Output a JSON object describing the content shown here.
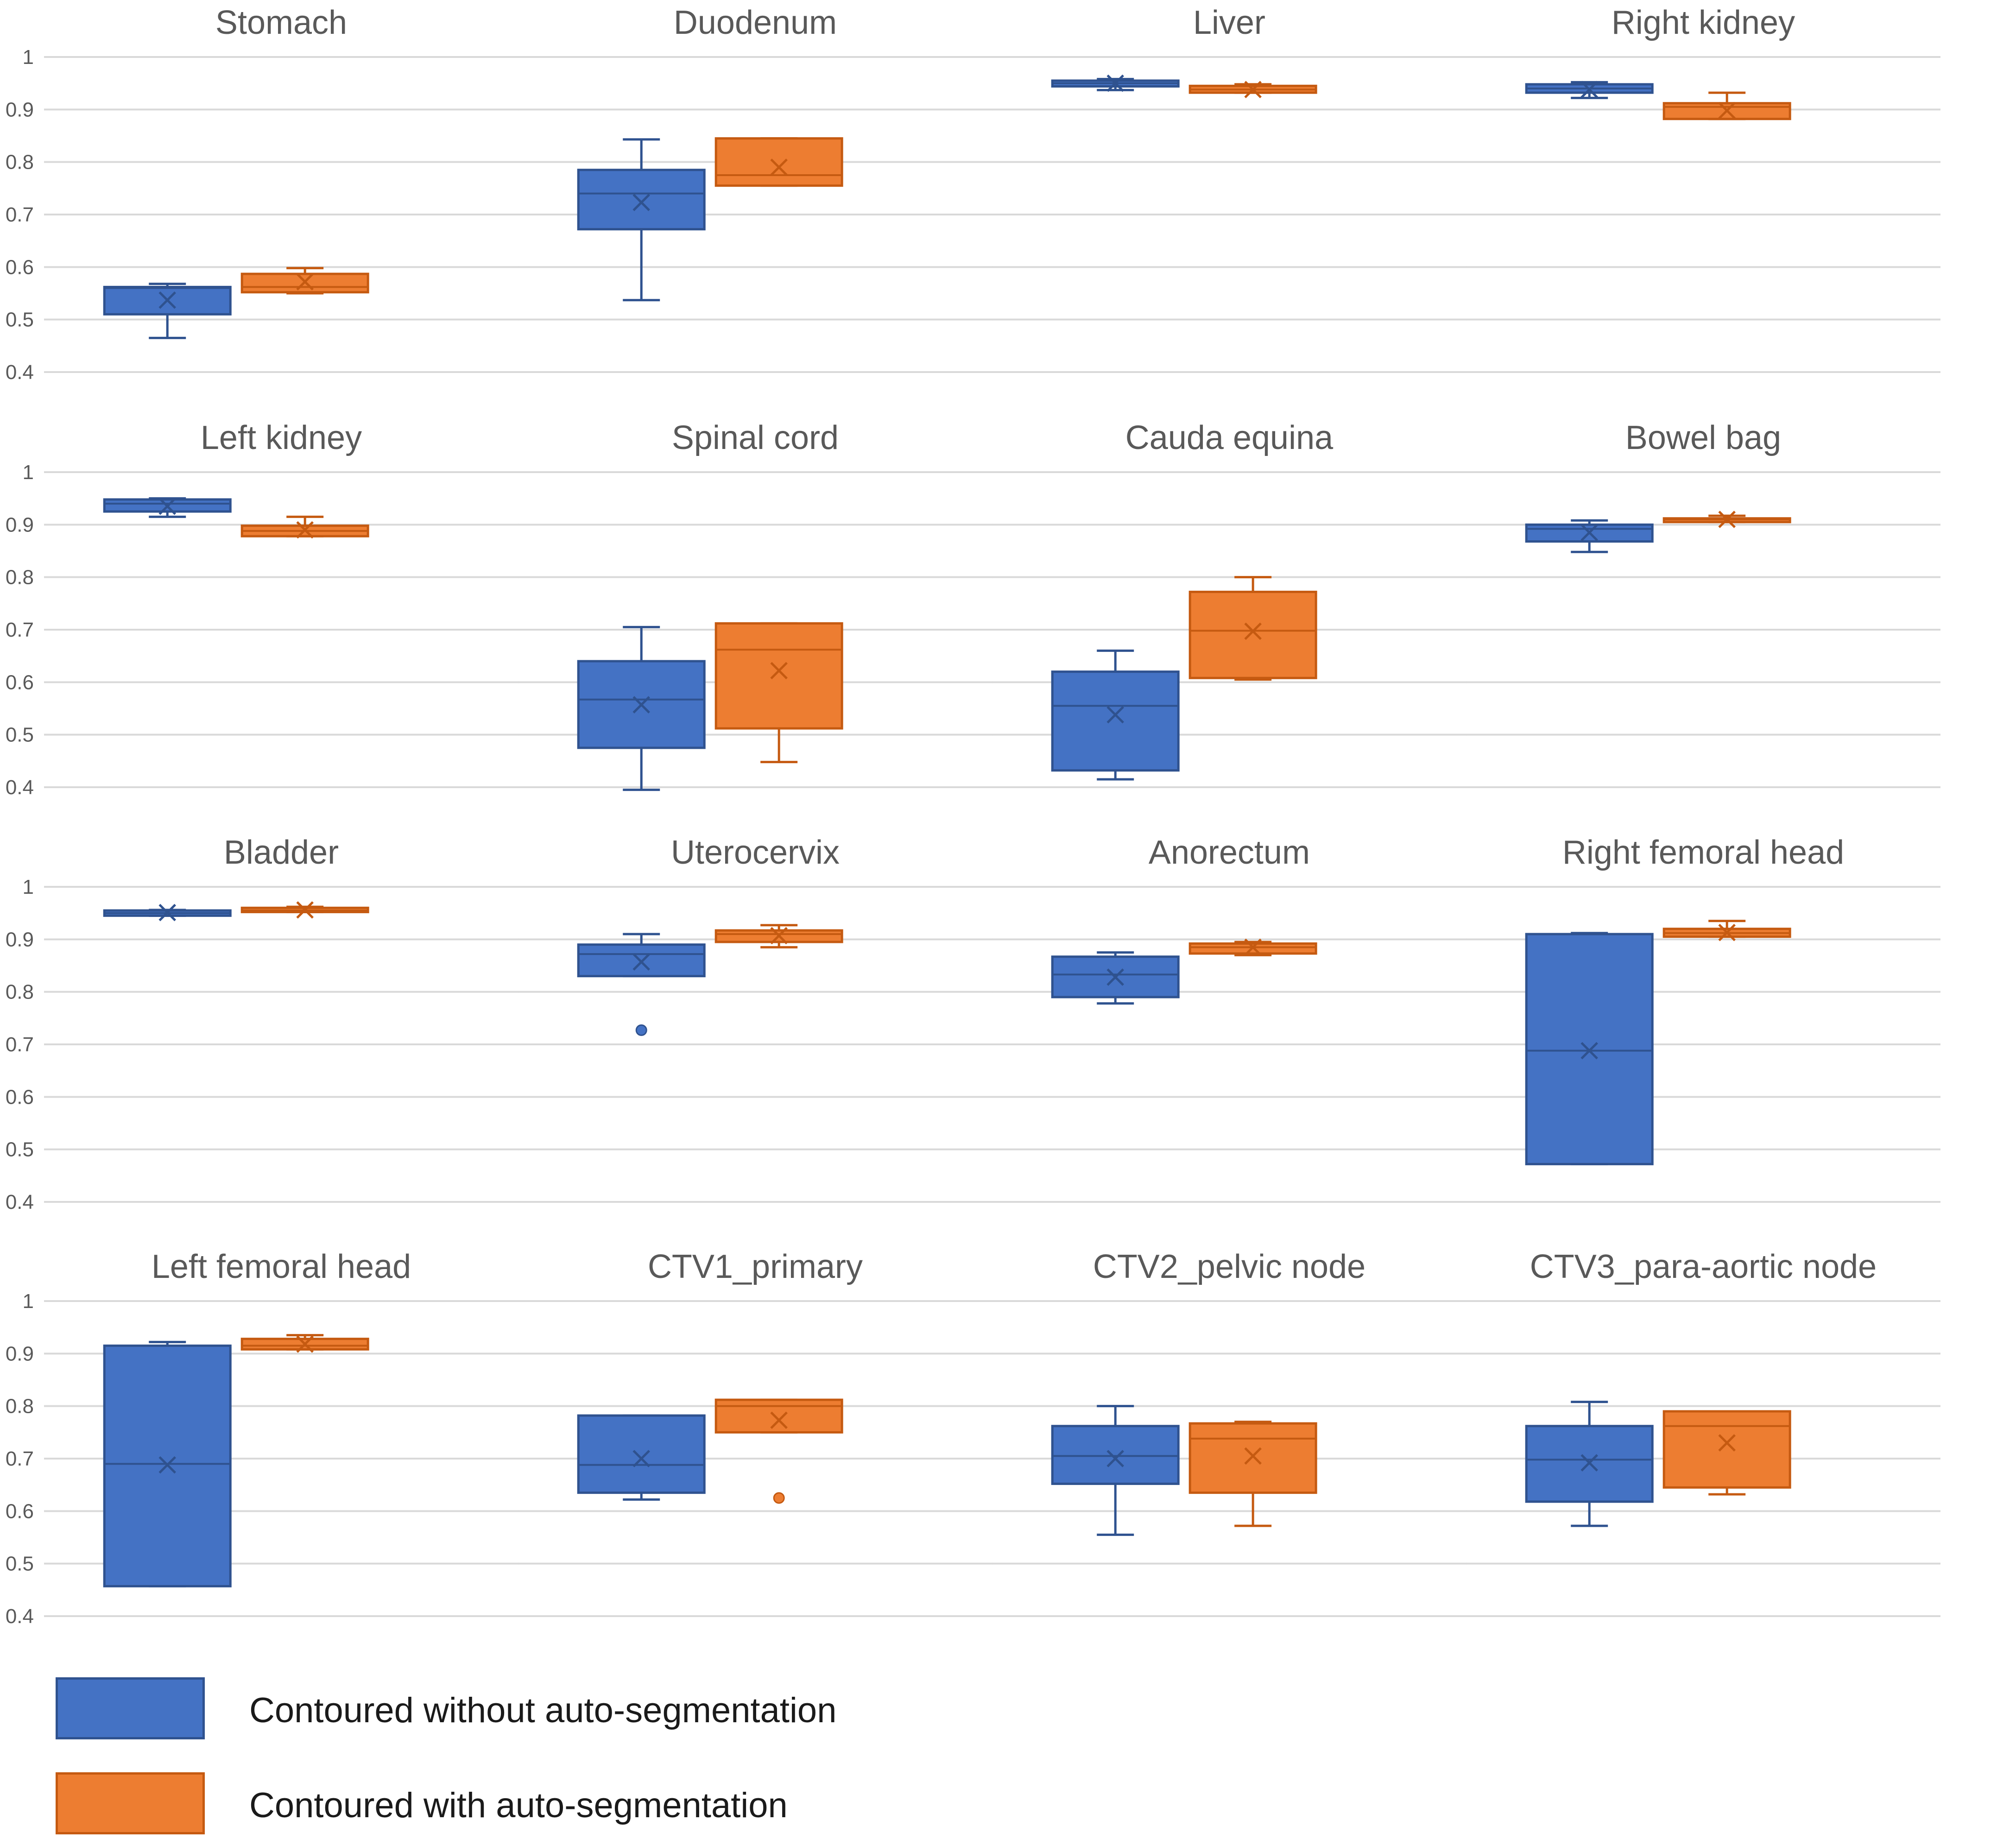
{
  "colors": {
    "series1_fill": "#4472C4",
    "series1_stroke": "#2F528F",
    "series2_fill": "#ED7D31",
    "series2_stroke": "#C55A11",
    "grid": "#D9D9D9",
    "axis_text": "#595959",
    "title_text": "#595959"
  },
  "legend": {
    "series1_label": "Contoured without auto-segmentation",
    "series2_label": "Contoured with auto-segmentation"
  },
  "chart_data": [
    {
      "type": "box",
      "title": "Stomach",
      "ylim": [
        0.4,
        1
      ],
      "yticks": [
        "0.4",
        "0.5",
        "0.6",
        "0.7",
        "0.8",
        "0.9",
        "1"
      ],
      "series": [
        {
          "name": "Contoured without auto-segmentation",
          "whisker_low": 0.465,
          "q1": 0.51,
          "median": 0.56,
          "q3": 0.562,
          "whisker_high": 0.568,
          "mean": 0.537,
          "outliers": []
        },
        {
          "name": "Contoured with auto-segmentation",
          "whisker_low": 0.55,
          "q1": 0.552,
          "median": 0.562,
          "q3": 0.587,
          "whisker_high": 0.598,
          "mean": 0.572,
          "outliers": []
        }
      ]
    },
    {
      "type": "box",
      "title": "Duodenum",
      "ylim": [
        0.4,
        1
      ],
      "yticks": [
        "0.4",
        "0.5",
        "0.6",
        "0.7",
        "0.8",
        "0.9",
        "1"
      ],
      "series": [
        {
          "name": "Contoured without auto-segmentation",
          "whisker_low": 0.537,
          "q1": 0.672,
          "median": 0.74,
          "q3": 0.785,
          "whisker_high": 0.843,
          "mean": 0.723,
          "outliers": []
        },
        {
          "name": "Contoured with auto-segmentation",
          "whisker_low": 0.755,
          "q1": 0.755,
          "median": 0.775,
          "q3": 0.845,
          "whisker_high": 0.845,
          "mean": 0.79,
          "outliers": []
        }
      ]
    },
    {
      "type": "box",
      "title": "Liver",
      "ylim": [
        0.4,
        1
      ],
      "yticks": [
        "0.4",
        "0.5",
        "0.6",
        "0.7",
        "0.8",
        "0.9",
        "1"
      ],
      "series": [
        {
          "name": "Contoured without auto-segmentation",
          "whisker_low": 0.937,
          "q1": 0.944,
          "median": 0.95,
          "q3": 0.955,
          "whisker_high": 0.958,
          "mean": 0.95,
          "outliers": []
        },
        {
          "name": "Contoured with auto-segmentation",
          "whisker_low": 0.932,
          "q1": 0.932,
          "median": 0.938,
          "q3": 0.945,
          "whisker_high": 0.948,
          "mean": 0.938,
          "outliers": []
        }
      ]
    },
    {
      "type": "box",
      "title": "Right kidney",
      "ylim": [
        0.4,
        1
      ],
      "yticks": [
        "0.4",
        "0.5",
        "0.6",
        "0.7",
        "0.8",
        "0.9",
        "1"
      ],
      "series": [
        {
          "name": "Contoured without auto-segmentation",
          "whisker_low": 0.922,
          "q1": 0.932,
          "median": 0.94,
          "q3": 0.948,
          "whisker_high": 0.952,
          "mean": 0.938,
          "outliers": []
        },
        {
          "name": "Contoured with auto-segmentation",
          "whisker_low": 0.882,
          "q1": 0.882,
          "median": 0.905,
          "q3": 0.912,
          "whisker_high": 0.932,
          "mean": 0.898,
          "outliers": []
        }
      ]
    },
    {
      "type": "box",
      "title": "Left kidney",
      "ylim": [
        0.4,
        1
      ],
      "yticks": [
        "0.4",
        "0.5",
        "0.6",
        "0.7",
        "0.8",
        "0.9",
        "1"
      ],
      "series": [
        {
          "name": "Contoured without auto-segmentation",
          "whisker_low": 0.915,
          "q1": 0.925,
          "median": 0.94,
          "q3": 0.948,
          "whisker_high": 0.95,
          "mean": 0.935,
          "outliers": []
        },
        {
          "name": "Contoured with auto-segmentation",
          "whisker_low": 0.878,
          "q1": 0.878,
          "median": 0.888,
          "q3": 0.898,
          "whisker_high": 0.915,
          "mean": 0.89,
          "outliers": []
        }
      ]
    },
    {
      "type": "box",
      "title": "Spinal cord",
      "ylim": [
        0.4,
        1
      ],
      "yticks": [
        "0.4",
        "0.5",
        "0.6",
        "0.7",
        "0.8",
        "0.9",
        "1"
      ],
      "series": [
        {
          "name": "Contoured without auto-segmentation",
          "whisker_low": 0.395,
          "q1": 0.475,
          "median": 0.567,
          "q3": 0.64,
          "whisker_high": 0.705,
          "mean": 0.557,
          "outliers": []
        },
        {
          "name": "Contoured with auto-segmentation",
          "whisker_low": 0.448,
          "q1": 0.512,
          "median": 0.662,
          "q3": 0.712,
          "whisker_high": 0.712,
          "mean": 0.622,
          "outliers": []
        }
      ]
    },
    {
      "type": "box",
      "title": "Cauda equina",
      "ylim": [
        0.4,
        1
      ],
      "yticks": [
        "0.4",
        "0.5",
        "0.6",
        "0.7",
        "0.8",
        "0.9",
        "1"
      ],
      "series": [
        {
          "name": "Contoured without auto-segmentation",
          "whisker_low": 0.415,
          "q1": 0.432,
          "median": 0.555,
          "q3": 0.62,
          "whisker_high": 0.66,
          "mean": 0.538,
          "outliers": []
        },
        {
          "name": "Contoured with auto-segmentation",
          "whisker_low": 0.605,
          "q1": 0.608,
          "median": 0.698,
          "q3": 0.772,
          "whisker_high": 0.8,
          "mean": 0.697,
          "outliers": []
        }
      ]
    },
    {
      "type": "box",
      "title": "Bowel bag",
      "ylim": [
        0.4,
        1
      ],
      "yticks": [
        "0.4",
        "0.5",
        "0.6",
        "0.7",
        "0.8",
        "0.9",
        "1"
      ],
      "series": [
        {
          "name": "Contoured without auto-segmentation",
          "whisker_low": 0.848,
          "q1": 0.868,
          "median": 0.892,
          "q3": 0.9,
          "whisker_high": 0.908,
          "mean": 0.885,
          "outliers": []
        },
        {
          "name": "Contoured with auto-segmentation",
          "whisker_low": 0.905,
          "q1": 0.905,
          "median": 0.91,
          "q3": 0.912,
          "whisker_high": 0.917,
          "mean": 0.91,
          "outliers": []
        }
      ]
    },
    {
      "type": "box",
      "title": "Bladder",
      "ylim": [
        0.4,
        1
      ],
      "yticks": [
        "0.4",
        "0.5",
        "0.6",
        "0.7",
        "0.8",
        "0.9",
        "1"
      ],
      "series": [
        {
          "name": "Contoured without auto-segmentation",
          "whisker_low": 0.945,
          "q1": 0.945,
          "median": 0.95,
          "q3": 0.955,
          "whisker_high": 0.956,
          "mean": 0.951,
          "outliers": []
        },
        {
          "name": "Contoured with auto-segmentation",
          "whisker_low": 0.952,
          "q1": 0.952,
          "median": 0.955,
          "q3": 0.96,
          "whisker_high": 0.962,
          "mean": 0.956,
          "outliers": []
        }
      ]
    },
    {
      "type": "box",
      "title": "Uterocervix",
      "ylim": [
        0.4,
        1
      ],
      "yticks": [
        "0.4",
        "0.5",
        "0.6",
        "0.7",
        "0.8",
        "0.9",
        "1"
      ],
      "series": [
        {
          "name": "Contoured without auto-segmentation",
          "whisker_low": 0.83,
          "q1": 0.83,
          "median": 0.872,
          "q3": 0.89,
          "whisker_high": 0.91,
          "mean": 0.857,
          "outliers": [
            0.727
          ]
        },
        {
          "name": "Contoured with auto-segmentation",
          "whisker_low": 0.885,
          "q1": 0.895,
          "median": 0.91,
          "q3": 0.917,
          "whisker_high": 0.927,
          "mean": 0.907,
          "outliers": []
        }
      ]
    },
    {
      "type": "box",
      "title": "Anorectum",
      "ylim": [
        0.4,
        1
      ],
      "yticks": [
        "0.4",
        "0.5",
        "0.6",
        "0.7",
        "0.8",
        "0.9",
        "1"
      ],
      "series": [
        {
          "name": "Contoured without auto-segmentation",
          "whisker_low": 0.778,
          "q1": 0.79,
          "median": 0.833,
          "q3": 0.867,
          "whisker_high": 0.875,
          "mean": 0.828,
          "outliers": []
        },
        {
          "name": "Contoured with auto-segmentation",
          "whisker_low": 0.87,
          "q1": 0.873,
          "median": 0.885,
          "q3": 0.892,
          "whisker_high": 0.895,
          "mean": 0.885,
          "outliers": []
        }
      ]
    },
    {
      "type": "box",
      "title": "Right femoral head",
      "ylim": [
        0.4,
        1
      ],
      "yticks": [
        "0.4",
        "0.5",
        "0.6",
        "0.7",
        "0.8",
        "0.9",
        "1"
      ],
      "series": [
        {
          "name": "Contoured without auto-segmentation",
          "whisker_low": 0.472,
          "q1": 0.472,
          "median": 0.688,
          "q3": 0.91,
          "whisker_high": 0.912,
          "mean": 0.688,
          "outliers": []
        },
        {
          "name": "Contoured with auto-segmentation",
          "whisker_low": 0.905,
          "q1": 0.905,
          "median": 0.912,
          "q3": 0.92,
          "whisker_high": 0.935,
          "mean": 0.913,
          "outliers": []
        }
      ]
    },
    {
      "type": "box",
      "title": "Left femoral head",
      "ylim": [
        0.4,
        1
      ],
      "yticks": [
        "0.4",
        "0.5",
        "0.6",
        "0.7",
        "0.8",
        "0.9",
        "1"
      ],
      "series": [
        {
          "name": "Contoured without auto-segmentation",
          "whisker_low": 0.457,
          "q1": 0.457,
          "median": 0.69,
          "q3": 0.915,
          "whisker_high": 0.922,
          "mean": 0.688,
          "outliers": []
        },
        {
          "name": "Contoured with auto-segmentation",
          "whisker_low": 0.908,
          "q1": 0.908,
          "median": 0.915,
          "q3": 0.928,
          "whisker_high": 0.935,
          "mean": 0.918,
          "outliers": []
        }
      ]
    },
    {
      "type": "box",
      "title": "CTV1_primary",
      "ylim": [
        0.4,
        1
      ],
      "yticks": [
        "0.4",
        "0.5",
        "0.6",
        "0.7",
        "0.8",
        "0.9",
        "1"
      ],
      "series": [
        {
          "name": "Contoured without auto-segmentation",
          "whisker_low": 0.622,
          "q1": 0.635,
          "median": 0.688,
          "q3": 0.782,
          "whisker_high": 0.782,
          "mean": 0.7,
          "outliers": []
        },
        {
          "name": "Contoured with auto-segmentation",
          "whisker_low": 0.75,
          "q1": 0.75,
          "median": 0.8,
          "q3": 0.812,
          "whisker_high": 0.812,
          "mean": 0.773,
          "outliers": [
            0.625
          ]
        }
      ]
    },
    {
      "type": "box",
      "title": "CTV2_pelvic node",
      "ylim": [
        0.4,
        1
      ],
      "yticks": [
        "0.4",
        "0.5",
        "0.6",
        "0.7",
        "0.8",
        "0.9",
        "1"
      ],
      "series": [
        {
          "name": "Contoured without auto-segmentation",
          "whisker_low": 0.555,
          "q1": 0.652,
          "median": 0.705,
          "q3": 0.762,
          "whisker_high": 0.8,
          "mean": 0.7,
          "outliers": []
        },
        {
          "name": "Contoured with auto-segmentation",
          "whisker_low": 0.572,
          "q1": 0.635,
          "median": 0.738,
          "q3": 0.767,
          "whisker_high": 0.77,
          "mean": 0.705,
          "outliers": []
        }
      ]
    },
    {
      "type": "box",
      "title": "CTV3_para-aortic node",
      "ylim": [
        0.4,
        1
      ],
      "yticks": [
        "0.4",
        "0.5",
        "0.6",
        "0.7",
        "0.8",
        "0.9",
        "1"
      ],
      "series": [
        {
          "name": "Contoured without auto-segmentation",
          "whisker_low": 0.572,
          "q1": 0.618,
          "median": 0.698,
          "q3": 0.762,
          "whisker_high": 0.808,
          "mean": 0.692,
          "outliers": []
        },
        {
          "name": "Contoured with auto-segmentation",
          "whisker_low": 0.632,
          "q1": 0.645,
          "median": 0.762,
          "q3": 0.79,
          "whisker_high": 0.79,
          "mean": 0.73,
          "outliers": []
        }
      ]
    }
  ]
}
